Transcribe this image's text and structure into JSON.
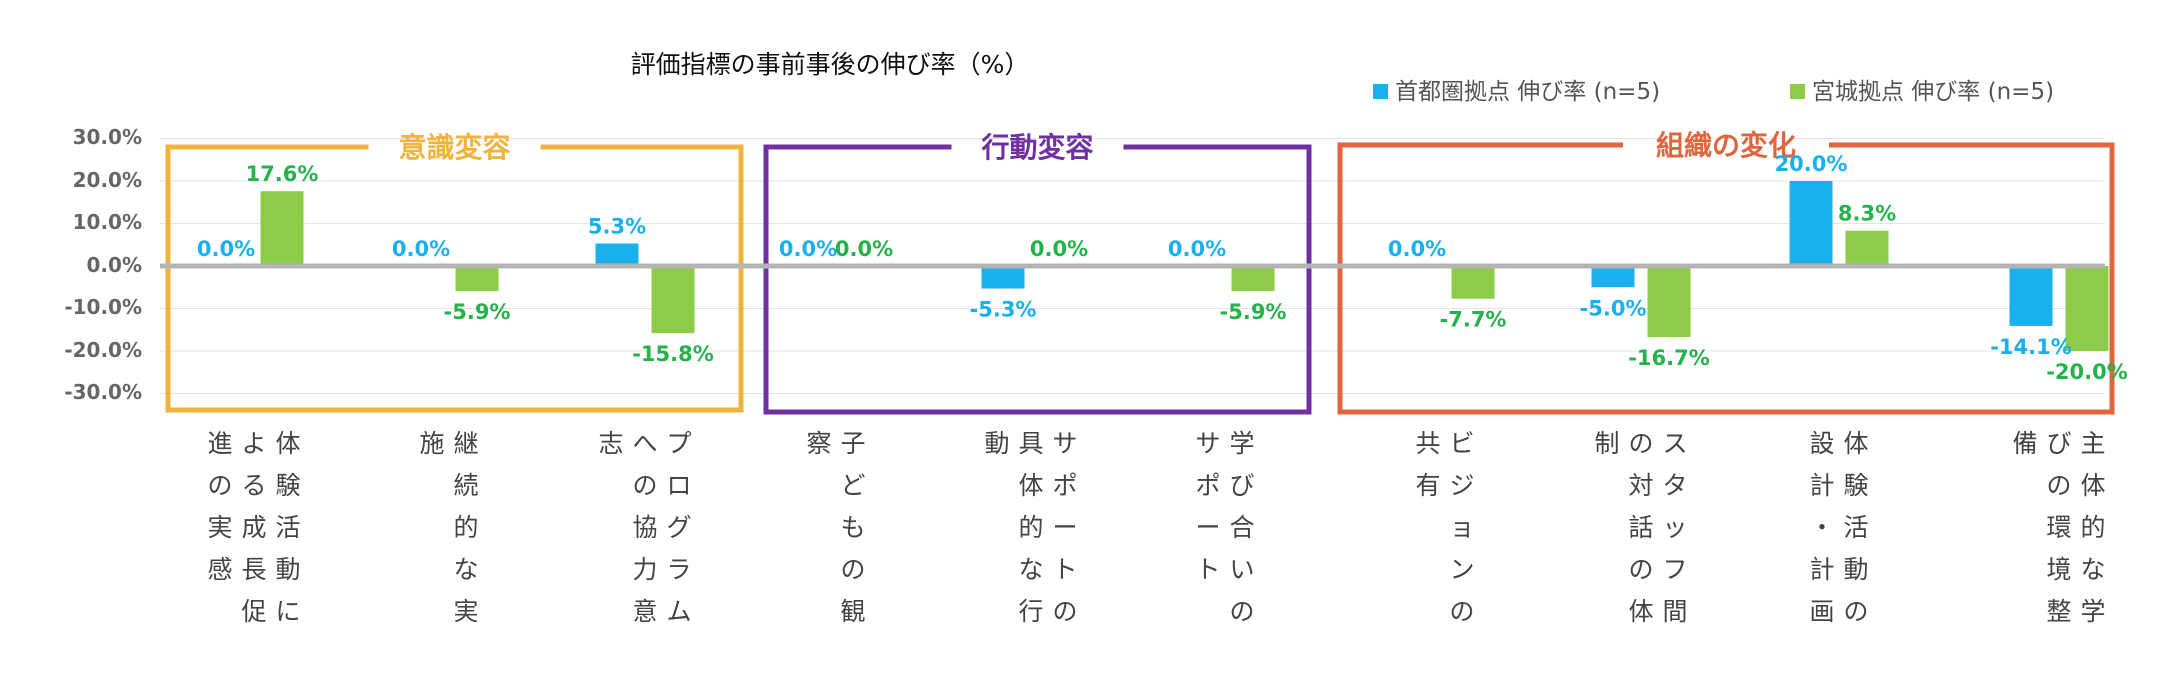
{
  "chart_data": {
    "type": "bar",
    "title": "評価指標の事前事後の伸び率（%）",
    "ylim": [
      -30,
      30
    ],
    "yticks": [
      "30.0%",
      "20.0%",
      "10.0%",
      "0.0%",
      "-10.0%",
      "-20.0%",
      "-30.0%"
    ],
    "legend_position": "top-right",
    "series": [
      {
        "name": "首都圏拠点 伸び率 (n=5)",
        "color": "#1ab0ee",
        "values": [
          0.0,
          0.0,
          5.3,
          0.0,
          -5.3,
          0.0,
          0.0,
          -5.0,
          20.0,
          -14.1
        ],
        "labels": [
          "0.0%",
          "0.0%",
          "5.3%",
          "0.0%",
          "-5.3%",
          "0.0%",
          "0.0%",
          "-5.0%",
          "20.0%",
          "-14.1%"
        ]
      },
      {
        "name": "宮城拠点 伸び率 (n=5)",
        "color": "#8ccc48",
        "label_color": "#24b24a",
        "values": [
          17.6,
          -5.9,
          -15.8,
          0.0,
          0.0,
          -5.9,
          -7.7,
          -16.7,
          8.3,
          -20.0
        ],
        "labels": [
          "17.6%",
          "-5.9%",
          "-15.8%",
          "0.0%",
          "0.0%",
          "-5.9%",
          "-7.7%",
          "-16.7%",
          "8.3%",
          "-20.0%"
        ]
      }
    ],
    "categories": [
      "体験活動による成長促進の実感",
      "継続的な実施",
      "プログラムへの協力意志",
      "子どもの観察",
      "サポートの具体的な行動",
      "学び合いのサポート",
      "ビジョンの共有",
      "スタッフ間の対話の体制",
      "体験活動の設計・計画",
      "主体的な学びの環境整備"
    ],
    "category_lines": [
      [
        "体験活動に",
        "よる成長促",
        "進の実感"
      ],
      [
        "継続的な実",
        "施"
      ],
      [
        "プログラム",
        "への協力意",
        "志"
      ],
      [
        "子どもの観",
        "察"
      ],
      [
        "サポートの",
        "具体的な行",
        "動"
      ],
      [
        "学び合いの",
        "サポート"
      ],
      [
        "ビジョンの",
        "共有"
      ],
      [
        "スタッフ間",
        "の対話の体",
        "制"
      ],
      [
        "体験活動の",
        "設計・計画"
      ],
      [
        "主体的な学",
        "びの環境整",
        "備"
      ]
    ],
    "groups": [
      {
        "label": "意識変容",
        "color": "#f0b43c",
        "categories": [
          0,
          1,
          2
        ]
      },
      {
        "label": "行動変容",
        "color": "#7030a0",
        "categories": [
          3,
          4,
          5
        ]
      },
      {
        "label": "組織の変化",
        "color": "#e0643c",
        "categories": [
          6,
          7,
          8,
          9
        ]
      }
    ]
  }
}
